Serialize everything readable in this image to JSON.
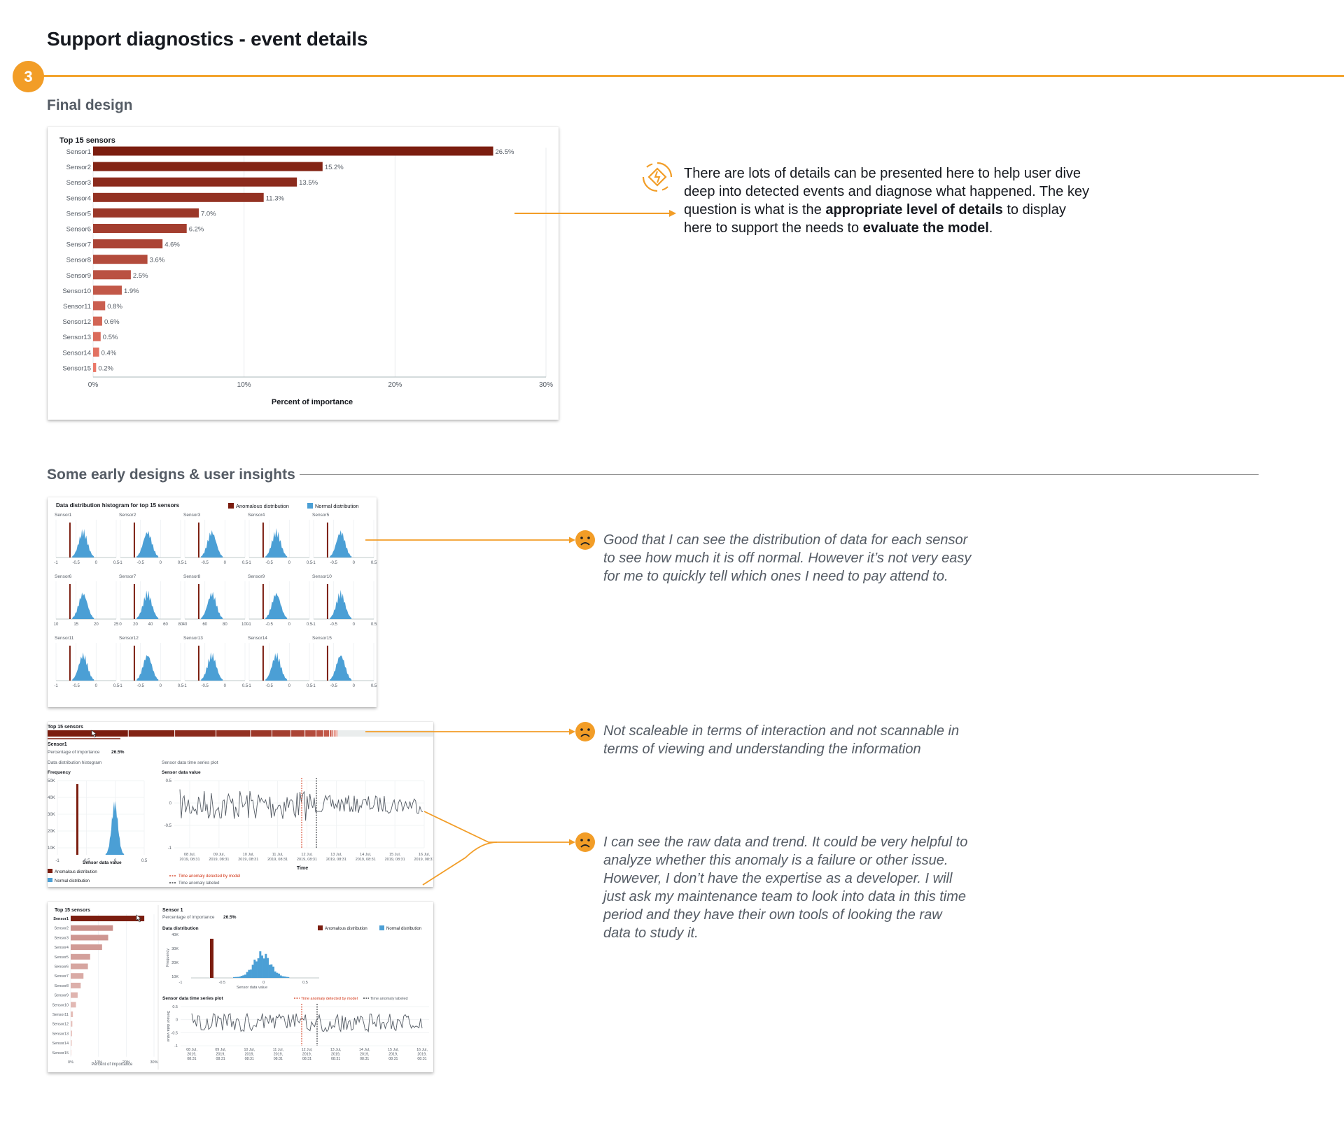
{
  "page": {
    "title": "Support diagnostics - event details",
    "step": "3"
  },
  "colors": {
    "accent": "#f29d27",
    "anomalous": "#7b1d0f",
    "normal": "#4b9fd5"
  },
  "sections": {
    "final_design": "Final design",
    "early_designs": "Some early designs & user insights"
  },
  "final_chart": {
    "chart_data": {
      "type": "bar",
      "orientation": "horizontal",
      "title": "Top 15 sensors",
      "xlabel": "Percent of importance",
      "ylabel": "",
      "xlim": [
        0,
        30
      ],
      "xticks": [
        "0%",
        "10%",
        "20%",
        "30%"
      ],
      "grid": true,
      "categories": [
        "Sensor1",
        "Sensor2",
        "Sensor3",
        "Sensor4",
        "Sensor5",
        "Sensor6",
        "Sensor7",
        "Sensor8",
        "Sensor9",
        "Sensor10",
        "Sensor11",
        "Sensor12",
        "Sensor13",
        "Sensor14",
        "Sensor15"
      ],
      "values": [
        26.5,
        15.2,
        13.5,
        11.3,
        7.0,
        6.2,
        4.6,
        3.6,
        2.5,
        1.9,
        0.8,
        0.6,
        0.5,
        0.4,
        0.2
      ],
      "value_labels": [
        "26.5%",
        "15.2%",
        "13.5%",
        "11.3%",
        "7.0%",
        "6.2%",
        "4.6%",
        "3.6%",
        "2.5%",
        "1.9%",
        "0.8%",
        "0.6%",
        "0.5%",
        "0.4%",
        "0.2%"
      ]
    }
  },
  "insight_note": {
    "icon": "diagnose-icon",
    "line1": "There are lots of details can be presented here to help user dive",
    "line2": "deep into detected events and diagnose what happened. The key",
    "line3_pre": "question is what is the ",
    "line3_bold": "appropriate level of details",
    "line3_post": " to display",
    "line4_pre": "here to support the needs to ",
    "line4_bold": "evaluate the model",
    "line4_post": "."
  },
  "early": {
    "histogram_grid": {
      "title": "Data distribution histogram for top 15 sensors",
      "legend_anomalous": "Anomalous distribution",
      "legend_normal": "Normal distribution",
      "sensors": [
        "Sensor1",
        "Sensor2",
        "Sensor3",
        "Sensor4",
        "Sensor5",
        "Sensor6",
        "Sensor7",
        "Sensor8",
        "Sensor9",
        "Sensor10",
        "Sensor11",
        "Sensor12",
        "Sensor13",
        "Sensor14",
        "Sensor15"
      ],
      "ticks_default": [
        "-1",
        "-0.5",
        "0",
        "0.5"
      ],
      "ticks_row2": [
        [
          "10",
          "15",
          "20",
          "25"
        ],
        [
          "0",
          "20",
          "40",
          "60",
          "80"
        ],
        [
          "40",
          "60",
          "80",
          "100"
        ],
        [
          "-1",
          "-0.5",
          "0",
          "0.5"
        ],
        [
          "-1",
          "-0.5",
          "0",
          "0.5"
        ]
      ]
    },
    "strip_design": {
      "title": "Top 15 sensors",
      "sensor": "Sensor1",
      "importance_label": "Percentage of importance",
      "importance_value": "26.5%",
      "hist_title": "Data distribution histogram",
      "hist_ylabel": "Frequency",
      "hist_yticks": [
        "50K",
        "40K",
        "30K",
        "20K",
        "10K"
      ],
      "hist_xticks": [
        "-1",
        "-0.5",
        "0",
        "0.5"
      ],
      "hist_xlabel": "Sensor data value",
      "ts_title": "Sensor data time series plot",
      "ts_ylabel": "Sensor data value",
      "ts_yticks": [
        "0.5",
        "0",
        "-0.5",
        "-1"
      ],
      "ts_xticks": [
        [
          "08 Jul,",
          "2019, 08:31"
        ],
        [
          "09 Jul,",
          "2019, 08:31"
        ],
        [
          "10 Jul,",
          "2019, 08:31"
        ],
        [
          "11 Jul,",
          "2019, 08:31"
        ],
        [
          "12 Jul,",
          "2019, 08:31"
        ],
        [
          "13 Jul,",
          "2019, 08:31"
        ],
        [
          "14 Jul,",
          "2019, 08:31"
        ],
        [
          "15 Jul,",
          "2019, 08:31"
        ],
        [
          "16 Jul,",
          "2019, 08:31"
        ]
      ],
      "ts_xlabel": "Time",
      "legend_anomalous": "Anomalous distribution",
      "legend_normal": "Normal distribution",
      "legend_detected": "Time anomaly detected by model",
      "legend_labeled": "Time anomaly labeled"
    },
    "list_design": {
      "title": "Top 15 sensors",
      "sensors": [
        "Sensor1",
        "Sensor2",
        "Sensor3",
        "Sensor4",
        "Sensor5",
        "Sensor6",
        "Sensor7",
        "Sensor8",
        "Sensor9",
        "Sensor10",
        "Sensor11",
        "Sensor12",
        "Sensor13",
        "Sensor14",
        "Sensor15"
      ],
      "xticks": [
        "0%",
        "10%",
        "20%",
        "30%"
      ],
      "xlabel": "Percent of importance",
      "sensor": "Sensor 1",
      "importance_label": "Percentage of importance",
      "importance_value": "26.5%",
      "dist_title": "Data distribution",
      "legend_anomalous": "Anomalous distribution",
      "legend_normal": "Normal distribution",
      "hist_ylabel": "Frequency",
      "hist_yticks": [
        "40K",
        "30K",
        "20K",
        "10K"
      ],
      "hist_xticks": [
        "-1",
        "-0.5",
        "0",
        "0.5"
      ],
      "hist_xlabel": "Sensor data value",
      "ts_title": "Sensor data time series plot",
      "legend_detected": "Time anomaly detected by model",
      "legend_labeled": "Time anomaly labeled",
      "ts_ylabel": "Sensor data value",
      "ts_yticks": [
        "0.5",
        "0",
        "-0.5",
        "-1"
      ],
      "ts_xticks": [
        [
          "08 Jul,",
          "2019,",
          "08:31"
        ],
        [
          "09 Jul,",
          "2019,",
          "08:31"
        ],
        [
          "10 Jul,",
          "2019,",
          "08:31"
        ],
        [
          "11 Jul,",
          "2019,",
          "08:31"
        ],
        [
          "12 Jul,",
          "2019,",
          "08:31"
        ],
        [
          "13 Jul,",
          "2019,",
          "08:31"
        ],
        [
          "14 Jul,",
          "2019,",
          "08:31"
        ],
        [
          "15 Jul,",
          "2019,",
          "08:31"
        ],
        [
          "16 Jul,",
          "2019,",
          "08:31"
        ]
      ]
    }
  },
  "quotes": {
    "q1": [
      "Good that I can see the distribution of data for each sensor",
      "to see how much it is off normal. However it’s not very easy",
      "for me to quickly tell which ones I need to pay attend to."
    ],
    "q2": [
      "Not scaleable in terms of interaction and not scannable in",
      "terms of viewing and understanding the information"
    ],
    "q3": [
      "I can see the raw data and trend. It could be very helpful to",
      "analyze whether this anomaly is a failure or other issue.",
      "However, I don’t have the expertise as a developer. I will",
      "just ask my maintenance team to look into data in this time",
      "period and they have their own tools of looking the raw",
      "data to study it."
    ]
  }
}
